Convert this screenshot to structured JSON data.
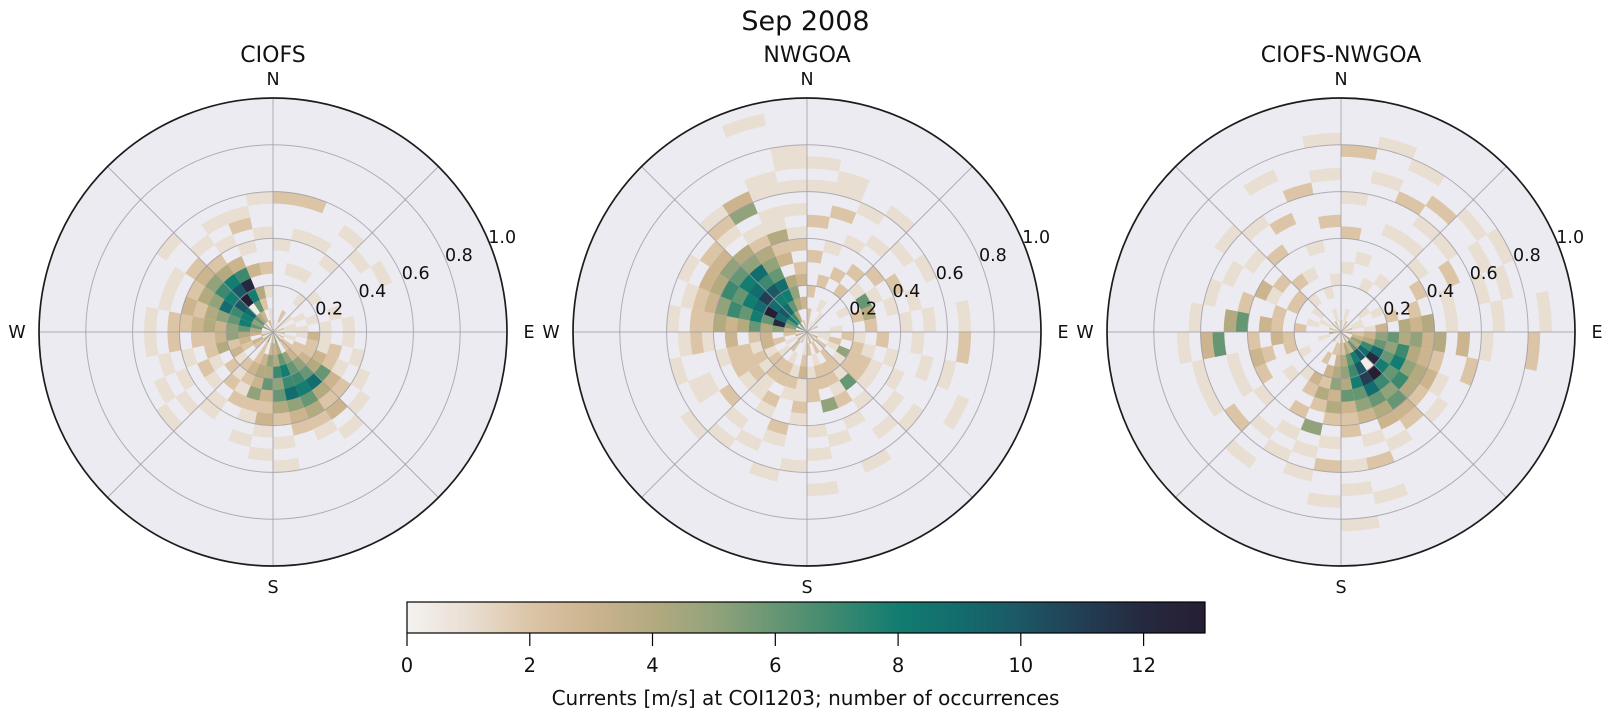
{
  "figure": {
    "title": "Sep 2008",
    "background": "#ffffff"
  },
  "style": {
    "axes_bg": "#ecebf2",
    "grid_color": "#9a98a0",
    "outer_ring_color": "#1c1c1c",
    "text_color": "#111111"
  },
  "colormap": {
    "stops": [
      [
        0,
        "#f4f2f0"
      ],
      [
        1,
        "#e9ded2"
      ],
      [
        2,
        "#dcc5a7"
      ],
      [
        3,
        "#cbb48e"
      ],
      [
        4,
        "#b4aa7f"
      ],
      [
        5,
        "#92a37b"
      ],
      [
        6,
        "#669673"
      ],
      [
        7,
        "#3c8970"
      ],
      [
        8,
        "#127d70"
      ],
      [
        9,
        "#136c6d"
      ],
      [
        10,
        "#1c5765"
      ],
      [
        11,
        "#223e54"
      ],
      [
        12,
        "#25293f"
      ],
      [
        13,
        "#261e34"
      ]
    ]
  },
  "chart_data": [
    {
      "type": "heatmap",
      "subtype": "polar_rose_histogram",
      "title": "CIOFS",
      "compass": {
        "n": "N",
        "e": "E",
        "s": "S",
        "w": "W"
      },
      "theta_bins": 32,
      "theta_bin_deg": 11.25,
      "r_max": 1.0,
      "r_bin": 0.05,
      "r_gridlines": [
        0.2,
        0.4,
        0.6,
        0.8,
        1.0
      ],
      "r_tick_labels": [
        "0.2",
        "0.4",
        "0.6",
        "0.8",
        "1.0"
      ],
      "r_label_angle_deg": 67.5,
      "cells": "24,1,4;24,2,6;24,3,5;24,4,3;24,5,4;24,6,3;24,7,2;24,8,2;24,10,1;25,1,6;25,2,8;25,3,6;25,4,5;25,5,4;25,6,2;25,7,3;25,9,1;26,0,5;26,1,5;26,2,8;26,3,7;26,4,9;26,5,5;26,6,4;26,7,2;26,9,1;27,1,6;27,2,9;27,3,10;27,4,8;27,5,7;27,6,5;27,7,3;27,8,2;27,11,1;28,0,1;28,1,4;28,2,0.3;28,3,13;28,4,10;28,5,8;28,6,4;28,7,2;28,9,1;29,1,3;29,2,6;29,3,8;29,4,12;29,5,7;29,6,3;29,8,1;29,10,1;30,0,3;30,2,2;30,3,4;30,5,3;30,7,1;30,9,2;30,10,1;31,1,1;31,3,1;31,5,2;31,8,1;31,11,1;23,1,3;23,2,4;23,3,5;23,4,3;23,5,2;23,6,2;23,8,2;23,10,1;22,0,3;22,2,3;22,3,2;22,4,4;22,5,2;22,7,1;22,9,1;21,1,3;21,2,2;21,3,3;21,5,1;21,6,2;21,8,1;21,10,1;20,0,3;20,1,2;20,3,1;20,4,2;20,6,1;20,9,1;20,11,1;19,3,2;19,4,1;19,5,2;19,7,1;19,8,1;18,0,4;18,1,2;18,2,2;18,3,3;18,4,2;18,5,1;18,6,2;17,2,3;17,3,4;17,4,3;17,5,5;17,6,2;17,7,1;17,9,1;16,0,2;16,1,3;16,2,5;16,3,4;16,4,6;16,5,3;16,6,2;16,7,3;16,8,1;16,10,1;15,1,3;15,2,4;15,3,7;15,4,5;15,5,6;15,6,4;15,7,2;15,9,1;15,11,1;14,0,5;14,1,4;14,2,6;14,3,8;14,4,7;14,5,9;14,6,5;14,7,3;14,8,2;13,2,5;13,3,6;13,4,7;13,5,8;13,6,6;13,7,4;13,8,2;13,9,1;12,0,3;12,1,2;12,2,3;12,3,5;12,4,6;12,5,9;12,6,4;12,7,2;12,8,3;12,10,1;11,1,2;11,2,2;11,3,3;11,4,4;11,5,6;11,6,3;11,7,2;11,9,1;10,0,2;10,2,2;10,3,2;10,4,3;10,5,2;10,6,1;10,8,1;9,1,1;9,3,2;9,4,1;9,5,2;9,7,1;8,0,2;8,2,1;8,3,3;8,4,1;8,6,1;7,1,1;7,2,1;7,4,1;7,6,1;6,0,2;6,1,1;6,3,1;6,5,1;5,2,1;5,10,1;4,0,1;4,1,1;4,4,1;4,9,1;3,3,1;3,7,1;3,10,1;2,0,1;2,1,2;2,5,1;2,8,1;1,5,1;1,8,1;1,11,2;0,0,1;0,7,1;0,11,2"
    },
    {
      "type": "heatmap",
      "subtype": "polar_rose_histogram",
      "title": "NWGOA",
      "compass": {
        "n": "N",
        "e": "E",
        "s": "S",
        "w": "W"
      },
      "theta_bins": 32,
      "theta_bin_deg": 11.25,
      "r_max": 1.0,
      "r_bin": 0.05,
      "r_gridlines": [
        0.2,
        0.4,
        0.6,
        0.8,
        1.0
      ],
      "r_tick_labels": [
        "0.2",
        "0.4",
        "0.6",
        "0.8",
        "1.0"
      ],
      "r_label_angle_deg": 67.5,
      "cells": "24,0,4;24,1,3;24,2,5;24,3,4;24,4,6;24,5,4;24,6,3;24,7,4;24,8,2;24,9,2;24,11,1;25,1,5;25,2,12;25,3,6;25,4,8;25,5,6;25,6,7;25,7,5;25,8,3;25,9,2;25,10,1;26,0,6;26,1,6;26,2,9;26,3,13;26,4,9;26,5,8;26,6,6;26,7,7;26,8,4;26,9,3;26,11,1;27,1,8;27,2,10;27,3,9;27,4,11;27,5,9;27,6,8;27,7,6;27,8,5;27,9,3;27,10,2;28,0,5;28,1,7;28,2,9;28,3,8;28,4,10;28,5,7;28,6,9;28,7,5;28,8,4;28,10,1;28,11,2;28,12,1;29,1,4;29,2,6;29,3,8;29,4,9;29,5,6;29,6,5;29,7,4;29,8,2;29,9,1;29,11,5;29,12,3;30,0,2;30,2,4;30,3,5;30,4,4;30,6,3;30,7,2;30,8,4;30,9,1;30,10,1;30,12,1;30,13,1;30,18,1;31,2,3;31,4,3;31,5,2;31,7,2;31,8,1;31,10,1;31,12,1;31,14,1;31,15,1;0,0,2;0,1,2;0,3,2;0,6,2;0,9,2;0,12,1;0,14,1;1,4,2;1,7,1;1,10,2;1,12,1;1,13,1;2,0,1;2,2,1;2,5,2;2,8,1;2,11,1;3,1,1;3,4,2;3,6,2;3,9,1;3,12,1;4,5,1;4,7,2;4,10,1;5,0,2;5,3,1;5,5,6;5,6,1;5,8,2;5,11,1;6,4,2;6,5,4;6,7,1;6,9,1;7,2,1;7,5,2;7,8,1;7,10,1;7,13,1;8,0,1;8,1,1;8,3,2;8,4,1;8,6,2;8,9,1;8,13,2;9,1,1;9,2,2;9,4,2;9,5,1;9,7,1;9,10,1;9,12,1;10,0,3;10,2,1;10,3,5;10,4,2;10,5,2;10,6,1;10,8,1;10,14,1;11,1,2;11,3,1;11,4,2;11,5,2;11,6,1;11,9,1;11,11,1;12,0,2;12,2,2;12,3,2;12,4,1;12,5,6;12,7,1;12,10,1;13,1,2;13,3,2;13,4,2;13,5,1;13,6,2;13,8,1;13,12,1;14,0,3;14,2,1;14,3,2;14,4,2;14,6,5;14,9,1;15,1,2;15,3,1;15,4,2;15,5,2;15,8,1;15,10,1;15,13,1;16,0,1;16,1,1;16,2,2;16,3,3;16,4,1;16,5,1;16,6,2;16,7,1;16,11,1;17,3,1;17,4,2;17,5,1;17,8,2;17,9,1;17,12,1;18,0,2;18,2,1;18,3,2;18,4,2;18,6,2;18,7,1;18,10,1;19,1,2;19,3,2;19,4,2;19,5,1;19,6,1;19,9,1;19,11,1;20,0,2;20,2,1;20,3,2;20,4,1;20,5,2;20,6,1;20,8,2;20,12,1;21,1,1;21,3,1;21,4,2;21,5,2;21,6,2;21,9,1;21,10,1;22,0,3;22,2,2;22,3,3;22,4,1;22,5,2;22,6,2;22,7,1;22,11,1;23,1,2;23,3,3;23,4,2;23,6,3;23,8,1;23,9,2;23,10,1"
    },
    {
      "type": "heatmap",
      "subtype": "polar_rose_histogram",
      "title": "CIOFS-NWGOA",
      "compass": {
        "n": "N",
        "e": "E",
        "s": "S",
        "w": "W"
      },
      "theta_bins": 32,
      "theta_bin_deg": 11.25,
      "r_max": 1.0,
      "r_bin": 0.05,
      "r_gridlines": [
        0.2,
        0.4,
        0.6,
        0.8,
        1.0
      ],
      "r_tick_labels": [
        "0.2",
        "0.4",
        "0.6",
        "0.8",
        "1.0"
      ],
      "r_label_angle_deg": 67.5,
      "cells": "9,1,3;9,2,4;9,3,6;9,4,5;9,5,7;9,6,4;9,7,3;9,8,2;9,11,2;10,1,5;10,2,7;10,3,9;10,4,6;10,5,8;10,6,5;10,7,4;10,8,3;10,9,1;11,0,3;11,1,4;11,2,9;11,3,12;11,4,8;11,5,6;11,6,7;11,7,4;11,8,2;11,10,1;12,1,6;12,2,10;12,3,0.3;12,4,13;12,5,7;12,6,5;12,7,6;12,8,3;12,9,2;13,0,3;13,1,3;13,2,8;13,3,10;13,4,11;13,5,9;13,6,6;13,7,4;13,8,3;13,10,1;14,1,4;14,2,6;14,3,7;14,4,8;14,5,6;14,6,5;14,7,3;14,9,1;14,11,2;14,14,1;15,0,2;15,1,2;15,2,4;15,3,5;15,4,4;15,5,6;15,6,3;15,7,2;15,8,2;15,11,1;15,13,1;15,16,1;16,1,2;16,2,3;16,3,4;16,4,5;16,5,3;16,6,4;16,7,2;16,9,1;16,11,2;16,14,1;17,0,1;17,1,2;17,3,3;17,4,2;17,5,4;17,6,2;17,8,5;17,10,1;17,12,1;18,2,2;18,4,3;18,5,2;18,7,2;18,9,1;18,11,1;8,0,3;8,1,2;8,2,3;8,3,5;8,4,6;8,5,4;8,6,5;8,7,3;8,8,4;8,10,3;8,12,1;8,16,2;7,2,1;7,3,3;7,5,4;7,6,3;7,7,4;7,9,1;7,13,1;7,17,1;6,0,2;6,1,1;6,4,2;6,6,2;6,9,1;6,12,1;6,14,1;5,1,1;5,3,1;5,7,2;5,10,2;5,13,1;5,15,1;4,0,1;4,2,1;4,8,1;4,11,1;4,14,1;3,5,1;3,9,1;3,11,1;3,13,2;2,0,2;2,4,1;2,9,1;2,12,2;2,15,1;1,1,1;1,6,1;1,13,1;1,16,1;0,0,1;0,5,1;0,8,2;0,11,1;0,15,2;31,0,1;31,4,1;31,9,2;31,13,1;31,16,1;30,1,1;30,3,1;30,7,1;30,12,2;29,0,2;29,5,1;29,10,2;29,14,1;28,3,1;28,5,2;28,8,2;28,11,1;27,0,1;27,2,1;27,4,2;27,6,2;27,9,1;27,12,1;26,1,1;26,4,2;26,6,1;26,7,3;26,10,1;25,0,2;25,2,1;25,5,2;25,8,2;25,11,1;24,3,2;24,5,2;24,6,3;24,8,6;24,9,4;24,12,1;23,0,3;23,4,2;23,5,3;23,7,2;23,10,6;23,11,3;23,13,1;22,1,1;22,4,2;22,6,2;22,7,3;22,9,1;22,12,1;21,3,1;21,7,2;21,9,1;21,12,1;20,5,1;20,8,1;20,11,2;19,0,2;19,4,1;19,10,1;19,13,1"
    },
    {
      "type": "colorbar",
      "orientation": "horizontal",
      "label": "Currents [m/s] at COI1203; number of occurrences",
      "ticks": [
        0,
        2,
        4,
        6,
        8,
        10,
        12
      ],
      "tick_labels": [
        "0",
        "2",
        "4",
        "6",
        "8",
        "10",
        "12"
      ],
      "range": [
        0,
        13
      ]
    }
  ]
}
